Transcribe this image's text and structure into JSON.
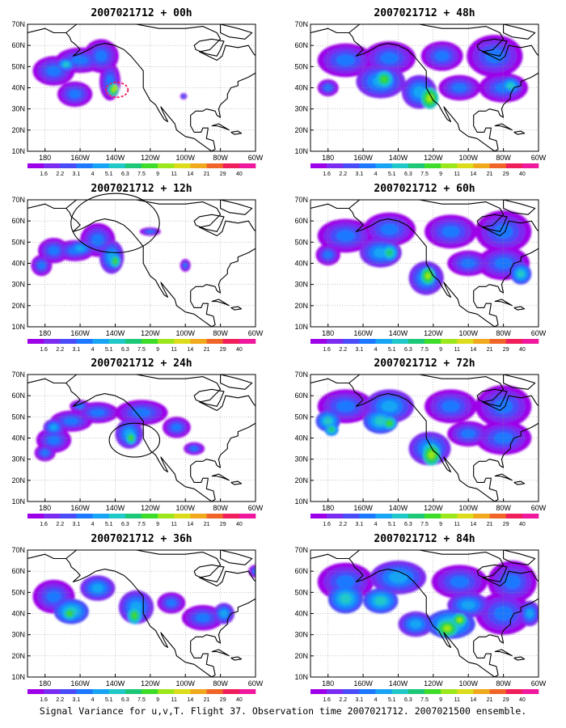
{
  "caption": "Signal Variance for u,v,T. Flight 37. Observation time 2007021712. 2007021500 ensemble.",
  "colorbar": {
    "labels": [
      "1.6",
      "2.2",
      "3.1",
      "4",
      "5.1",
      "6.3",
      "7.5",
      "9",
      "11",
      "14",
      "21",
      "29",
      "40"
    ],
    "colors": [
      "#9c00e8",
      "#7a2cf0",
      "#4a4cf8",
      "#1c78ff",
      "#18a4f4",
      "#20c8c8",
      "#1cc878",
      "#3cdc28",
      "#9ce61c",
      "#dcdc1c",
      "#f0a81c",
      "#f06428",
      "#f01e5a",
      "#f0189c"
    ]
  },
  "axes": {
    "lat_labels": [
      "70N",
      "60N",
      "50N",
      "40N",
      "30N",
      "20N",
      "10N"
    ],
    "lon_labels": [
      "180",
      "160W",
      "140W",
      "120W",
      "100W",
      "80W",
      "60W"
    ]
  },
  "panels": [
    {
      "title": "2007021712 + 00h",
      "blobs": [
        [
          -175,
          48,
          12,
          7,
          0
        ],
        [
          -160,
          53,
          14,
          6,
          0
        ],
        [
          -148,
          55,
          10,
          8,
          0
        ],
        [
          -143,
          43,
          6,
          9,
          0
        ],
        [
          -163,
          37,
          10,
          6,
          0
        ],
        [
          -168,
          51,
          5,
          3,
          2
        ],
        [
          -141,
          39,
          3,
          3,
          5
        ],
        [
          -140,
          40,
          1.5,
          1.5,
          8
        ],
        [
          -101,
          36,
          2,
          1.5,
          0
        ]
      ],
      "circles": [
        [
          -139,
          39,
          3.5,
          "#f01e5a"
        ]
      ]
    },
    {
      "title": "2007021712 + 12h",
      "blobs": [
        [
          -175,
          46,
          9,
          6,
          0
        ],
        [
          -182,
          39,
          6,
          5,
          0
        ],
        [
          -163,
          46,
          11,
          5,
          0
        ],
        [
          -150,
          51,
          10,
          8,
          0
        ],
        [
          -142,
          43,
          7,
          8,
          1
        ],
        [
          -140,
          41,
          3,
          3,
          4
        ],
        [
          -160,
          47,
          8,
          4,
          1
        ],
        [
          -120,
          55,
          6,
          2,
          0
        ],
        [
          -100,
          39,
          3,
          3,
          0
        ]
      ],
      "circles": [
        [
          -140,
          59,
          14,
          "#000"
        ]
      ]
    },
    {
      "title": "2007021712 + 24h",
      "blobs": [
        [
          -175,
          39,
          10,
          6,
          0
        ],
        [
          -180,
          33,
          6,
          4,
          0
        ],
        [
          -165,
          48,
          12,
          5,
          0
        ],
        [
          -150,
          52,
          12,
          5,
          0
        ],
        [
          -125,
          52,
          15,
          6,
          0
        ],
        [
          -132,
          42,
          8,
          7,
          1
        ],
        [
          -131,
          40,
          3,
          3,
          4
        ],
        [
          -105,
          45,
          8,
          5,
          0
        ],
        [
          -95,
          35,
          6,
          3,
          0
        ],
        [
          -175,
          45,
          6,
          4,
          1
        ],
        [
          -160,
          55,
          6,
          3,
          0
        ]
      ],
      "circles": [
        [
          -129,
          39,
          8,
          "#000"
        ]
      ]
    },
    {
      "title": "2007021712 + 36h",
      "blobs": [
        [
          -175,
          48,
          12,
          8,
          0
        ],
        [
          -165,
          41,
          10,
          6,
          2
        ],
        [
          -166,
          40,
          4,
          3,
          4
        ],
        [
          -150,
          52,
          10,
          6,
          1
        ],
        [
          -128,
          43,
          10,
          8,
          1
        ],
        [
          -129,
          39,
          4,
          4,
          4
        ],
        [
          -108,
          45,
          8,
          5,
          0
        ],
        [
          -90,
          38,
          12,
          6,
          0
        ],
        [
          -78,
          40,
          6,
          5,
          1
        ],
        [
          -60,
          60,
          4,
          3,
          0
        ]
      ],
      "circles": []
    },
    {
      "title": "2007021712 + 48h",
      "blobs": [
        [
          -170,
          53,
          16,
          8,
          0
        ],
        [
          -145,
          54,
          15,
          8,
          0
        ],
        [
          -115,
          55,
          12,
          7,
          0
        ],
        [
          -85,
          55,
          16,
          10,
          0
        ],
        [
          -80,
          40,
          14,
          7,
          0
        ],
        [
          -150,
          43,
          14,
          8,
          1
        ],
        [
          -148,
          44,
          5,
          4,
          4
        ],
        [
          -128,
          38,
          10,
          8,
          1
        ],
        [
          -122,
          35,
          5,
          5,
          5
        ],
        [
          -76,
          41,
          6,
          4,
          2
        ],
        [
          -105,
          40,
          12,
          6,
          0
        ],
        [
          -180,
          40,
          6,
          4,
          0
        ]
      ],
      "circles": []
    },
    {
      "title": "2007021712 + 60h",
      "blobs": [
        [
          -170,
          53,
          16,
          8,
          0
        ],
        [
          -145,
          56,
          15,
          8,
          0
        ],
        [
          -110,
          55,
          15,
          8,
          0
        ],
        [
          -80,
          55,
          16,
          10,
          0
        ],
        [
          -80,
          40,
          15,
          8,
          0
        ],
        [
          -150,
          45,
          12,
          7,
          1
        ],
        [
          -145,
          45,
          5,
          4,
          3
        ],
        [
          -124,
          33,
          10,
          8,
          1
        ],
        [
          -123,
          34,
          4,
          4,
          5
        ],
        [
          -100,
          40,
          12,
          6,
          0
        ],
        [
          -70,
          35,
          6,
          5,
          2
        ],
        [
          -180,
          44,
          7,
          5,
          0
        ]
      ],
      "circles": []
    },
    {
      "title": "2007021712 + 72h",
      "blobs": [
        [
          -170,
          55,
          16,
          8,
          0
        ],
        [
          -145,
          55,
          14,
          8,
          1
        ],
        [
          -110,
          55,
          15,
          8,
          0
        ],
        [
          -80,
          55,
          16,
          10,
          0
        ],
        [
          -80,
          40,
          16,
          8,
          0
        ],
        [
          -150,
          48,
          10,
          6,
          2
        ],
        [
          -145,
          47,
          4,
          3,
          4
        ],
        [
          -122,
          35,
          12,
          8,
          1
        ],
        [
          -121,
          32,
          5,
          5,
          5
        ],
        [
          -100,
          42,
          12,
          6,
          0
        ],
        [
          -180,
          48,
          7,
          5,
          2
        ],
        [
          -178,
          44,
          4,
          3,
          3
        ]
      ],
      "circles": []
    },
    {
      "title": "2007021712 + 84h",
      "blobs": [
        [
          -170,
          55,
          16,
          9,
          0
        ],
        [
          -140,
          57,
          16,
          8,
          1
        ],
        [
          -105,
          55,
          16,
          8,
          0
        ],
        [
          -75,
          55,
          14,
          10,
          0
        ],
        [
          -80,
          40,
          16,
          10,
          0
        ],
        [
          -170,
          47,
          10,
          7,
          2
        ],
        [
          -150,
          46,
          10,
          6,
          2
        ],
        [
          -110,
          35,
          14,
          7,
          2
        ],
        [
          -112,
          33,
          6,
          4,
          5
        ],
        [
          -105,
          37,
          4,
          3,
          5
        ],
        [
          -130,
          35,
          10,
          6,
          1
        ],
        [
          -100,
          44,
          12,
          6,
          1
        ],
        [
          -65,
          40,
          6,
          6,
          1
        ]
      ],
      "circles": []
    }
  ]
}
